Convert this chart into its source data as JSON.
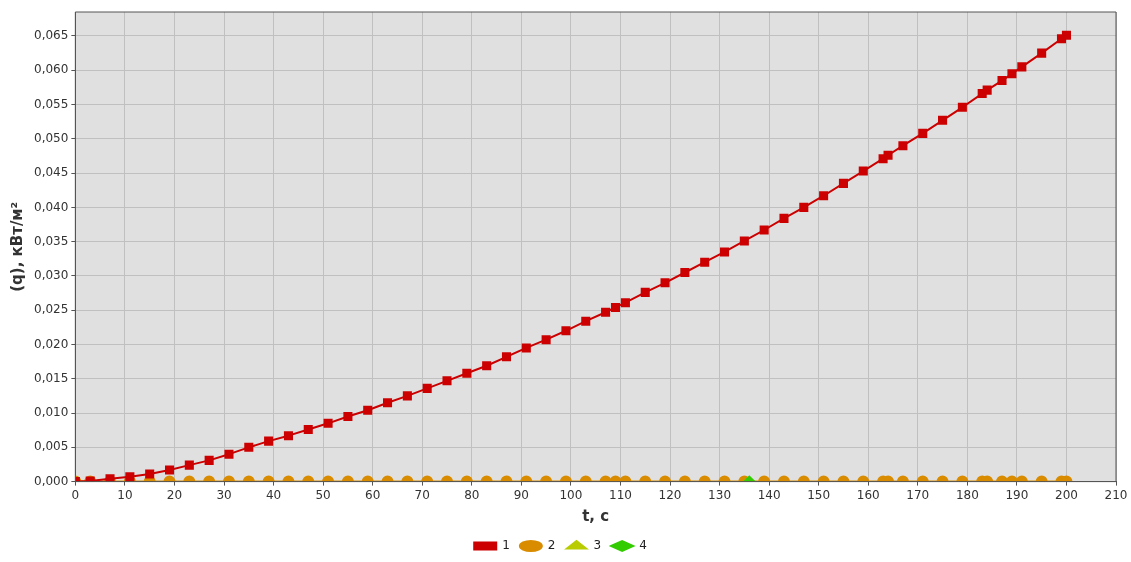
{
  "chart_data": {
    "type": "line",
    "xlabel": "t, c",
    "ylabel": "(q), кВт/м²",
    "x": [
      0,
      3,
      7,
      11,
      15,
      19,
      23,
      27,
      31,
      35,
      39,
      43,
      47,
      51,
      55,
      59,
      63,
      67,
      71,
      75,
      79,
      83,
      87,
      91,
      95,
      99,
      103,
      107,
      109,
      111,
      115,
      119,
      123,
      127,
      131,
      135,
      139,
      143,
      147,
      151,
      155,
      159,
      163,
      164,
      167,
      171,
      175,
      179,
      183,
      184,
      187,
      189,
      191,
      195,
      199,
      200
    ],
    "series": [
      {
        "name": "1",
        "color": "#cc0000",
        "marker": "square",
        "values": [
          0,
          0.0001,
          0.0004,
          0.0007,
          0.0011,
          0.0017,
          0.0024,
          0.0031,
          0.004,
          0.005,
          0.0059,
          0.0067,
          0.0076,
          0.0085,
          0.0095,
          0.0104,
          0.0115,
          0.0125,
          0.0136,
          0.0147,
          0.0158,
          0.0169,
          0.0182,
          0.0195,
          0.0207,
          0.022,
          0.0234,
          0.0247,
          0.0254,
          0.0261,
          0.0276,
          0.029,
          0.0305,
          0.032,
          0.0335,
          0.0351,
          0.0367,
          0.0384,
          0.04,
          0.0417,
          0.0435,
          0.0453,
          0.0471,
          0.0476,
          0.049,
          0.0508,
          0.0527,
          0.0546,
          0.0566,
          0.0571,
          0.0585,
          0.0595,
          0.0605,
          0.0625,
          0.0646,
          0.0651
        ]
      },
      {
        "name": "2",
        "color": "#d98c00",
        "marker": "circle",
        "values": [
          0,
          0,
          0,
          0,
          0,
          0,
          0,
          0,
          0,
          0,
          0,
          0,
          0,
          0,
          0,
          0,
          0,
          0,
          0,
          0,
          0,
          0,
          0,
          0,
          0,
          0,
          0,
          0,
          0,
          0,
          0,
          0,
          0,
          0,
          0,
          0,
          0,
          0,
          0,
          0,
          0,
          0,
          0,
          0,
          0,
          0,
          0,
          0,
          0,
          0,
          0,
          0,
          0,
          0,
          0,
          0
        ]
      },
      {
        "name": "3",
        "color": "#b8cc00",
        "marker": "triangle",
        "values": [
          null,
          null,
          null,
          null,
          null,
          null,
          null,
          null,
          null,
          null,
          null,
          null,
          null,
          null,
          null,
          null,
          null,
          null,
          null,
          null,
          null,
          null,
          null,
          null,
          null,
          null,
          null,
          null,
          null,
          null,
          null,
          null,
          null,
          null,
          null,
          null,
          null,
          null,
          null,
          null,
          null,
          null,
          null,
          null,
          null,
          null,
          null,
          null,
          null,
          null,
          null,
          null,
          null,
          null,
          null,
          null
        ]
      },
      {
        "name": "4",
        "color": "#33cc00",
        "marker": "diamond",
        "x": [
          136
        ],
        "values": [
          0
        ]
      }
    ],
    "xlim": [
      0,
      210
    ],
    "xticks": [
      0,
      10,
      20,
      30,
      40,
      50,
      60,
      70,
      80,
      90,
      100,
      110,
      120,
      130,
      140,
      150,
      160,
      170,
      180,
      190,
      200,
      210
    ],
    "ylim": [
      0,
      0.0685
    ],
    "yticks": [
      {
        "value": 0,
        "label": "0,000"
      },
      {
        "value": 0.005,
        "label": "0,005"
      },
      {
        "value": 0.01,
        "label": "0,010"
      },
      {
        "value": 0.015,
        "label": "0,015"
      },
      {
        "value": 0.02,
        "label": "0,020"
      },
      {
        "value": 0.025,
        "label": "0,025"
      },
      {
        "value": 0.03,
        "label": "0,030"
      },
      {
        "value": 0.035,
        "label": "0,035"
      },
      {
        "value": 0.04,
        "label": "0,040"
      },
      {
        "value": 0.045,
        "label": "0,045"
      },
      {
        "value": 0.05,
        "label": "0,050"
      },
      {
        "value": 0.055,
        "label": "0,055"
      },
      {
        "value": 0.06,
        "label": "0,060"
      },
      {
        "value": 0.065,
        "label": "0,065"
      }
    ],
    "grid": true,
    "legend": "bottom",
    "line_style": "solid"
  }
}
